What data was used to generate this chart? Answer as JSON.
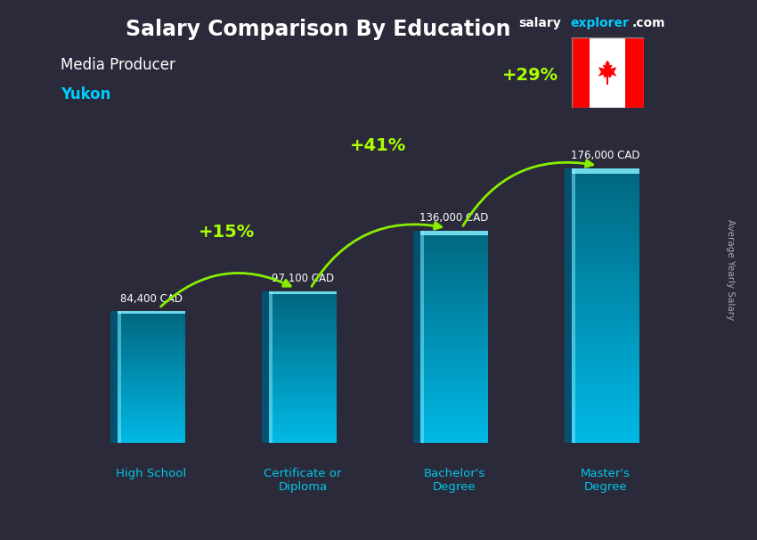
{
  "title": "Salary Comparison By Education",
  "subtitle1": "Media Producer",
  "subtitle2": "Yukon",
  "categories": [
    "High School",
    "Certificate or\nDiploma",
    "Bachelor's\nDegree",
    "Master's\nDegree"
  ],
  "values": [
    84400,
    97100,
    136000,
    176000
  ],
  "value_labels": [
    "84,400 CAD",
    "97,100 CAD",
    "136,000 CAD",
    "176,000 CAD"
  ],
  "pct_changes": [
    "+15%",
    "+41%",
    "+29%"
  ],
  "bar_color_main": "#00c0e8",
  "bar_color_light": "#40d8f8",
  "bar_color_dark": "#0088bb",
  "bar_color_side": "#006688",
  "background_color": "#2a2a3a",
  "title_color": "#ffffff",
  "subtitle1_color": "#ffffff",
  "subtitle2_color": "#00ccff",
  "value_label_color": "#ffffff",
  "pct_color": "#aaff00",
  "arrow_color": "#88ee00",
  "ylabel": "Average Yearly Salary",
  "ylabel_color": "#aaaaaa",
  "xtick_color": "#00c8e8",
  "website_salary": "salary",
  "website_explorer": "explorer",
  "website_com": ".com",
  "ylim": [
    0,
    215000
  ],
  "bar_width": 0.45,
  "bar_positions": [
    0,
    1,
    2,
    3
  ]
}
